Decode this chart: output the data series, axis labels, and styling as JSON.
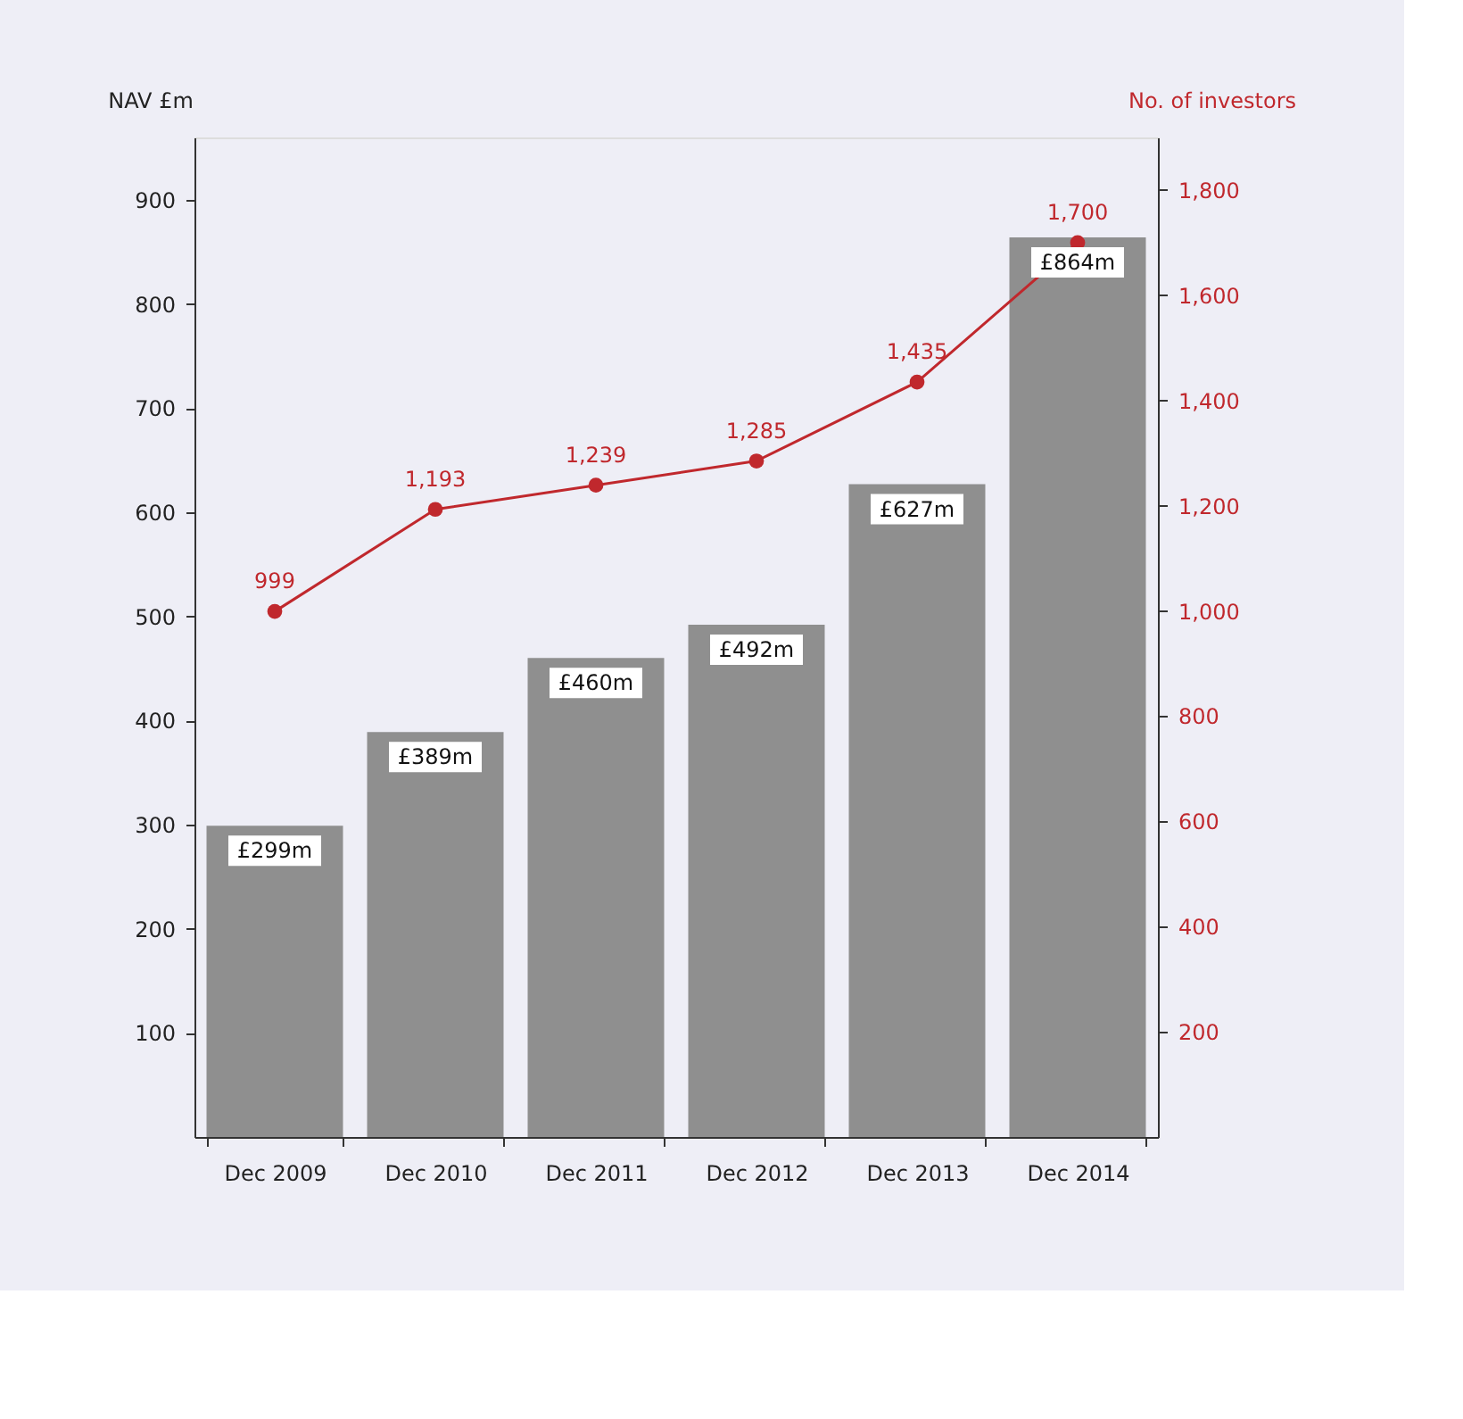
{
  "chart_data": {
    "type": "bar",
    "ylabel": "NAV £m",
    "y2label": "No. of investors",
    "categories": [
      "Dec 2009",
      "Dec 2010",
      "Dec 2011",
      "Dec 2012",
      "Dec 2013",
      "Dec 2014"
    ],
    "series": [
      {
        "color": "#8f8f8f",
        "values": [
          299,
          389,
          460,
          492,
          627,
          864
        ],
        "value_labels": [
          "£299m",
          "£389m",
          "£460m",
          "£492m",
          "£627m",
          "£864m"
        ]
      },
      {
        "type": "line",
        "axis": "y2",
        "color": "#c0282d",
        "marker": "circle",
        "values": [
          999,
          1193,
          1239,
          1285,
          1435,
          1700
        ],
        "value_labels": [
          "999",
          "1,193",
          "1,239",
          "1,285",
          "1,435",
          "1,700"
        ]
      }
    ],
    "ylim": [
      0,
      960
    ],
    "yticks": [
      100,
      200,
      300,
      400,
      500,
      600,
      700,
      800,
      900
    ],
    "y2lim": [
      0,
      1900
    ],
    "y2ticks": [
      {
        "value": 200,
        "label": "200"
      },
      {
        "value": 400,
        "label": "400"
      },
      {
        "value": 600,
        "label": "600"
      },
      {
        "value": 800,
        "label": "800"
      },
      {
        "value": 1000,
        "label": "1,000"
      },
      {
        "value": 1200,
        "label": "1,200"
      },
      {
        "value": 1400,
        "label": "1,400"
      },
      {
        "value": 1600,
        "label": "1,600"
      },
      {
        "value": 1800,
        "label": "1,800"
      }
    ],
    "grid": false
  }
}
